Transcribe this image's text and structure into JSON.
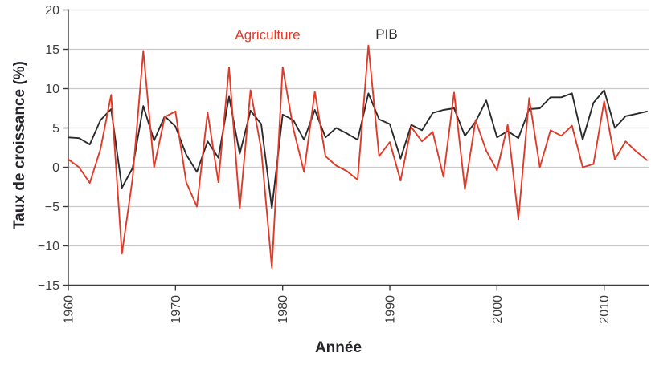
{
  "figure": {
    "y_axis_title": "Taux de croissance (%)",
    "x_axis_title": "Année",
    "legend": {
      "agriculture": "Agriculture",
      "pib": "PIB"
    }
  },
  "colors": {
    "agriculture": "#e03a28",
    "pib": "#2b2b2b",
    "grid": "#c9c9c9",
    "axis": "#3c3c3c",
    "tick_label": "#3d3b3c",
    "background": "#ffffff"
  },
  "chart_data": {
    "type": "line",
    "title": "",
    "xlabel": "Année",
    "ylabel": "Taux de croissance (%)",
    "grid": "horizontal",
    "legend_position": "top-inside",
    "ylim": [
      -15,
      20
    ],
    "yticks": [
      {
        "v": 20,
        "label": "20"
      },
      {
        "v": 15,
        "label": "15"
      },
      {
        "v": 10,
        "label": "10"
      },
      {
        "v": 5,
        "label": "5"
      },
      {
        "v": 0,
        "label": "0"
      },
      {
        "v": -5,
        "label": "−5"
      },
      {
        "v": -10,
        "label": "−10"
      },
      {
        "v": -15,
        "label": "−15"
      }
    ],
    "xticks": [
      {
        "v": 1960,
        "label": "1960"
      },
      {
        "v": 1970,
        "label": "1970"
      },
      {
        "v": 1980,
        "label": "1980"
      },
      {
        "v": 1990,
        "label": "1990"
      },
      {
        "v": 2000,
        "label": "2000"
      },
      {
        "v": 2010,
        "label": "2010"
      }
    ],
    "x": [
      1960,
      1961,
      1962,
      1963,
      1964,
      1965,
      1966,
      1967,
      1968,
      1969,
      1970,
      1971,
      1972,
      1973,
      1974,
      1975,
      1976,
      1977,
      1978,
      1979,
      1980,
      1981,
      1982,
      1983,
      1984,
      1985,
      1986,
      1987,
      1988,
      1989,
      1990,
      1991,
      1992,
      1993,
      1994,
      1995,
      1996,
      1997,
      1998,
      1999,
      2000,
      2001,
      2002,
      2003,
      2004,
      2005,
      2006,
      2007,
      2008,
      2009,
      2010,
      2011,
      2012,
      2013,
      2014
    ],
    "series": [
      {
        "name": "Agriculture",
        "color_key": "agriculture",
        "values": [
          1.0,
          0.0,
          -2.0,
          2.3,
          9.2,
          -11.0,
          -1.4,
          14.8,
          0.0,
          6.4,
          7.1,
          -1.9,
          -5.0,
          7.0,
          -1.9,
          12.7,
          -5.3,
          9.8,
          2.3,
          -12.8,
          12.7,
          4.9,
          -0.6,
          9.6,
          1.4,
          0.2,
          -0.5,
          -1.6,
          15.5,
          1.4,
          3.2,
          -1.7,
          5.1,
          3.3,
          4.5,
          -1.2,
          9.5,
          -2.8,
          6.0,
          2.1,
          -0.4,
          5.4,
          -6.6,
          8.8,
          0.0,
          4.7,
          4.0,
          5.3,
          0.0,
          0.4,
          8.4,
          1.0,
          3.3,
          2.0,
          0.9
        ]
      },
      {
        "name": "PIB",
        "color_key": "pib",
        "values": [
          3.8,
          3.7,
          2.9,
          6.0,
          7.4,
          -2.6,
          -0.1,
          7.8,
          3.4,
          6.5,
          5.2,
          1.6,
          -0.6,
          3.3,
          1.2,
          9.0,
          1.7,
          7.2,
          5.5,
          -5.2,
          6.7,
          6.0,
          3.5,
          7.3,
          3.8,
          5.0,
          4.3,
          3.5,
          9.4,
          6.1,
          5.5,
          1.1,
          5.4,
          4.7,
          6.9,
          7.3,
          7.5,
          4.0,
          5.8,
          8.5,
          3.8,
          4.6,
          3.7,
          7.4,
          7.5,
          8.9,
          8.9,
          9.4,
          3.5,
          8.2,
          9.8,
          5.0,
          6.5,
          6.8,
          7.1
        ]
      }
    ]
  }
}
